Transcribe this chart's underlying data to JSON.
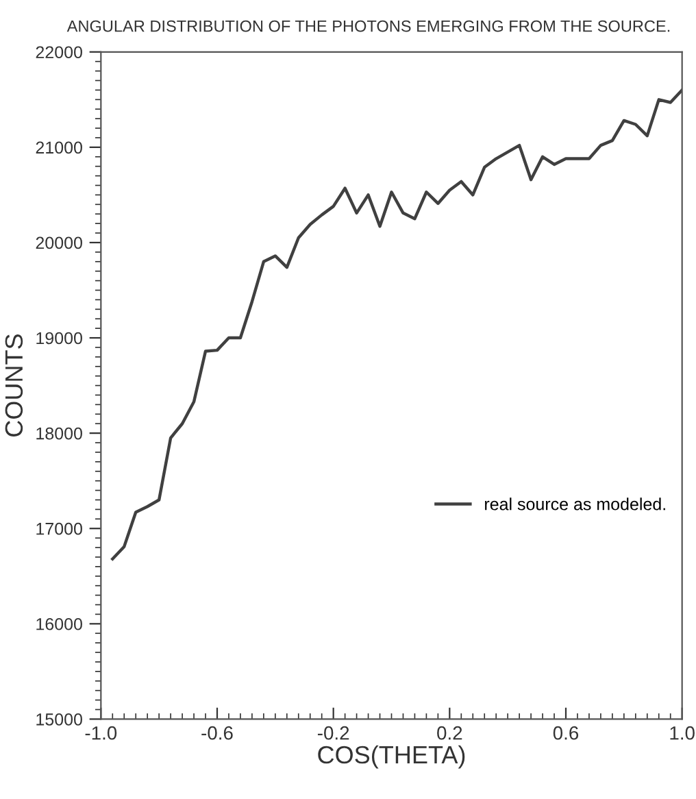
{
  "chart_data": {
    "type": "line",
    "title": "ANGULAR DISTRIBUTION OF THE PHOTONS EMERGING FROM THE SOURCE.",
    "xlabel": "COS(THETA)",
    "ylabel": "COUNTS",
    "x": [
      -0.96,
      -0.92,
      -0.88,
      -0.84,
      -0.8,
      -0.76,
      -0.72,
      -0.68,
      -0.64,
      -0.6,
      -0.56,
      -0.52,
      -0.48,
      -0.44,
      -0.4,
      -0.36,
      -0.32,
      -0.28,
      -0.24,
      -0.2,
      -0.16,
      -0.12,
      -0.08,
      -0.04,
      0.0,
      0.04,
      0.08,
      0.12,
      0.16,
      0.2,
      0.24,
      0.28,
      0.32,
      0.36,
      0.4,
      0.44,
      0.48,
      0.52,
      0.56,
      0.6,
      0.64,
      0.68,
      0.72,
      0.76,
      0.8,
      0.84,
      0.88,
      0.92,
      0.96,
      1.0
    ],
    "series": [
      {
        "name": "real source as modeled.",
        "color": "#404040",
        "values": [
          16680,
          16810,
          17170,
          17230,
          17300,
          17950,
          18100,
          18330,
          18860,
          18870,
          19000,
          19000,
          19380,
          19800,
          19860,
          19740,
          20050,
          20190,
          20290,
          20380,
          20570,
          20310,
          20500,
          20170,
          20530,
          20310,
          20250,
          20530,
          20410,
          20550,
          20640,
          20500,
          20790,
          20880,
          20950,
          21020,
          20660,
          20900,
          20820,
          20880,
          20880,
          20880,
          21020,
          21070,
          21280,
          21240,
          21120,
          21500,
          21470,
          21600
        ]
      }
    ],
    "xlim": [
      -1.0,
      1.0
    ],
    "xticks": [
      {
        "value": -1.0,
        "label": "-1.0"
      },
      {
        "value": -0.6,
        "label": "-0.6"
      },
      {
        "value": -0.2,
        "label": "-0.2"
      },
      {
        "value": 0.2,
        "label": "0.2"
      },
      {
        "value": 0.6,
        "label": "0.6"
      },
      {
        "value": 1.0,
        "label": "1.0"
      }
    ],
    "ylim": [
      15000,
      22000
    ],
    "yticks": [
      15000,
      16000,
      17000,
      18000,
      19000,
      20000,
      21000,
      22000
    ],
    "grid": false,
    "legend": "right",
    "marker": "none",
    "line_style": "solid"
  }
}
